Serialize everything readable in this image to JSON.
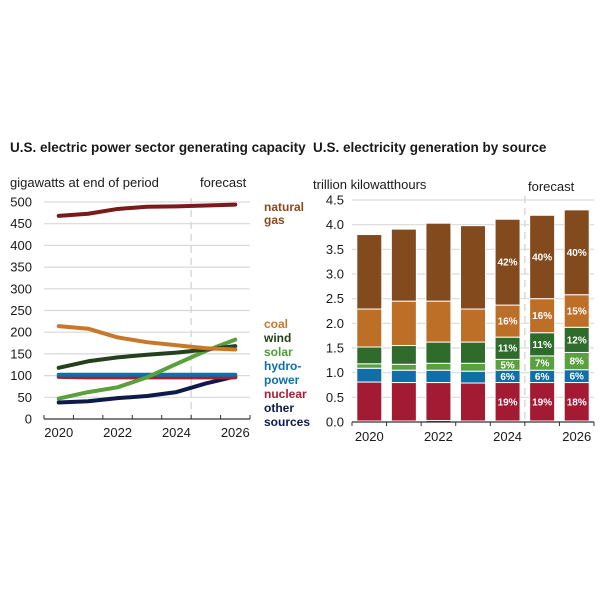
{
  "chart_data": [
    {
      "type": "line",
      "title": "U.S. electric power sector generating capacity",
      "ylabel": "gigawatts at end of period",
      "forecast_label": "forecast",
      "forecast_start": 2024.5,
      "x": [
        2020,
        2021,
        2022,
        2023,
        2024,
        2025,
        2026
      ],
      "xticks": [
        "2020",
        "2022",
        "2024",
        "2026"
      ],
      "xtick_values": [
        2020,
        2022,
        2024,
        2026
      ],
      "ylim": [
        0,
        500
      ],
      "yticks": [
        0,
        50,
        100,
        150,
        200,
        250,
        300,
        350,
        400,
        450,
        500
      ],
      "grid": true,
      "legend": "right",
      "series": [
        {
          "name": "natural gas",
          "label_lines": [
            "natural",
            "gas"
          ],
          "color": "#7a1a1a",
          "values": [
            468,
            473,
            484,
            489,
            490,
            492,
            494
          ]
        },
        {
          "name": "coal",
          "label_lines": [
            "coal"
          ],
          "color": "#c8782a",
          "values": [
            214,
            208,
            188,
            177,
            170,
            163,
            160
          ]
        },
        {
          "name": "wind",
          "label_lines": [
            "wind"
          ],
          "color": "#24401c",
          "values": [
            118,
            133,
            142,
            148,
            153,
            160,
            168
          ]
        },
        {
          "name": "solar",
          "label_lines": [
            "solar"
          ],
          "color": "#5aa03e",
          "values": [
            47,
            62,
            73,
            96,
            127,
            157,
            183
          ]
        },
        {
          "name": "hydropower",
          "label_lines": [
            "hydro-",
            "power"
          ],
          "color": "#0f6fa6",
          "values": [
            102,
            102,
            102,
            102,
            102,
            102,
            102
          ]
        },
        {
          "name": "nuclear",
          "label_lines": [
            "nuclear"
          ],
          "color": "#a81c34",
          "values": [
            97,
            96,
            96,
            96,
            96,
            96,
            96
          ]
        },
        {
          "name": "other sources",
          "label_lines": [
            "other",
            "sources"
          ],
          "color": "#0e1a4a",
          "values": [
            38,
            41,
            48,
            53,
            62,
            82,
            98
          ]
        }
      ]
    },
    {
      "type": "bar",
      "stacked": true,
      "title": "U.S. electricity generation by source",
      "ylabel": "trillion kilowatthours",
      "forecast_label": "forecast",
      "forecast_start": 2024.5,
      "categories": [
        "2020",
        "2021",
        "2022",
        "2023",
        "2024",
        "2025",
        "2026"
      ],
      "xticks": [
        "2020",
        "2022",
        "2024",
        "2026"
      ],
      "ylim": [
        0,
        4.5
      ],
      "yticks": [
        "0.0",
        "0.5",
        "1.0",
        "1.5",
        "2.0",
        "2.5",
        "3.0",
        "3.5",
        "4.0",
        "4.5"
      ],
      "grid": true,
      "series": [
        {
          "name": "other",
          "color": "#7a1a2a",
          "values": [
            0.02,
            0.02,
            0.03,
            0.02,
            0.02,
            0.02,
            0.02
          ],
          "labels": [
            "",
            "",
            "",
            "",
            "",
            "",
            ""
          ]
        },
        {
          "name": "nuclear",
          "color": "#a31a33",
          "values": [
            0.79,
            0.78,
            0.77,
            0.77,
            0.78,
            0.78,
            0.78
          ],
          "labels": [
            "",
            "",
            "",
            "",
            "19%",
            "19%",
            "18%"
          ]
        },
        {
          "name": "hydropower",
          "color": "#0f6fa6",
          "values": [
            0.28,
            0.25,
            0.25,
            0.24,
            0.25,
            0.25,
            0.26
          ],
          "labels": [
            "",
            "",
            "",
            "",
            "6%",
            "6%",
            "6%"
          ]
        },
        {
          "name": "solar",
          "color": "#5aa03e",
          "values": [
            0.09,
            0.12,
            0.14,
            0.16,
            0.22,
            0.29,
            0.35
          ],
          "labels": [
            "",
            "",
            "",
            "",
            "5%",
            "7%",
            "8%"
          ]
        },
        {
          "name": "wind",
          "color": "#2f6b2a",
          "values": [
            0.34,
            0.38,
            0.43,
            0.43,
            0.45,
            0.47,
            0.51
          ],
          "labels": [
            "",
            "",
            "",
            "",
            "11%",
            "11%",
            "12%"
          ]
        },
        {
          "name": "coal",
          "color": "#bd6f28",
          "values": [
            0.77,
            0.9,
            0.83,
            0.67,
            0.65,
            0.69,
            0.66
          ],
          "labels": [
            "",
            "",
            "",
            "",
            "16%",
            "16%",
            "15%"
          ]
        },
        {
          "name": "natural gas",
          "color": "#834a1e",
          "values": [
            1.51,
            1.46,
            1.58,
            1.69,
            1.74,
            1.69,
            1.72
          ],
          "labels": [
            "",
            "",
            "",
            "",
            "42%",
            "40%",
            "40%"
          ]
        }
      ]
    }
  ]
}
